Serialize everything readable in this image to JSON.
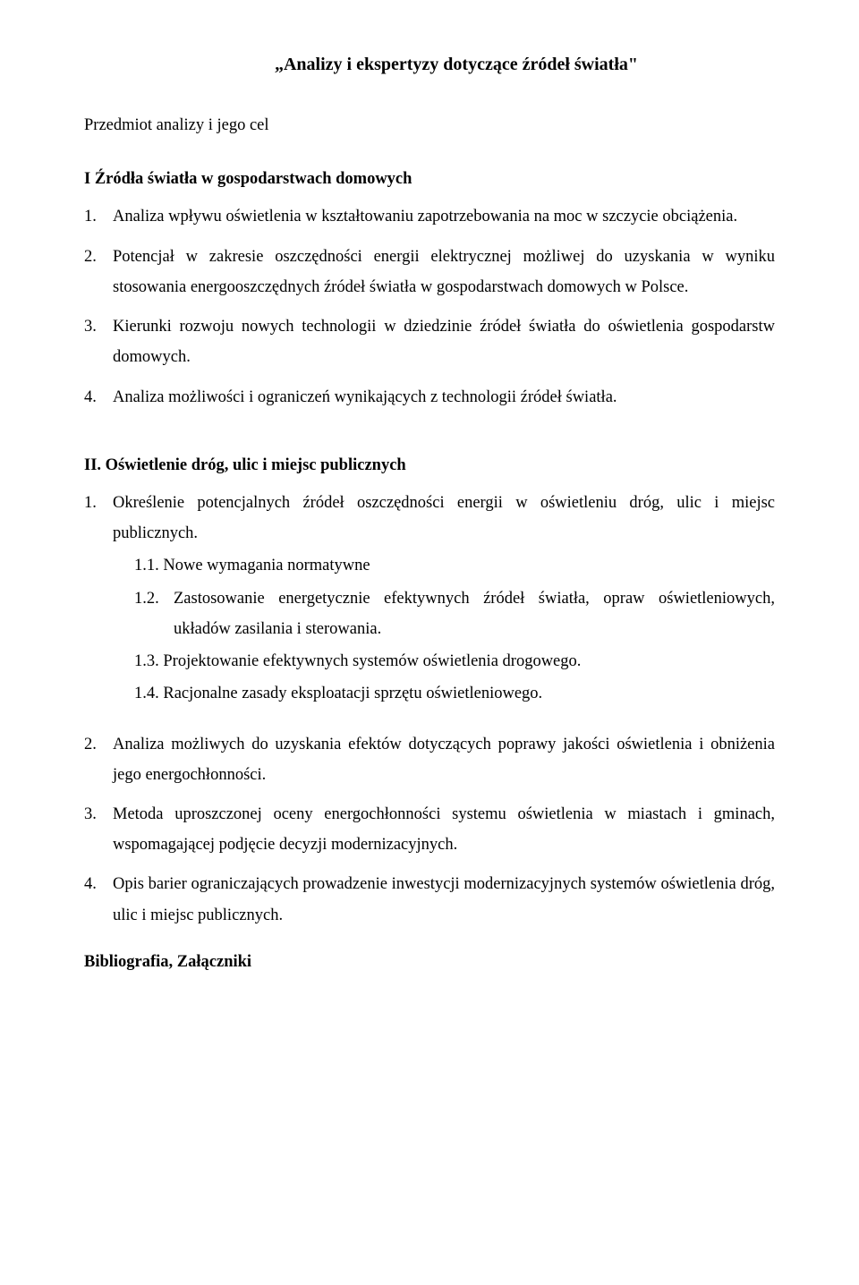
{
  "colors": {
    "bg": "#ffffff",
    "text": "#000000"
  },
  "typography": {
    "family": "Times New Roman",
    "base_size_pt": 14,
    "heading_weight": "bold"
  },
  "title": "„Analizy i ekspertyzy dotyczące źródeł światła\"",
  "subject": "Przedmiot analizy i jego cel",
  "section1": {
    "heading": "I Źródła światła w gospodarstwach domowych",
    "items": [
      {
        "n": "1.",
        "t": "Analiza wpływu oświetlenia w kształtowaniu zapotrzebowania na moc w szczycie obciążenia."
      },
      {
        "n": "2.",
        "t": "Potencjał w zakresie oszczędności energii elektrycznej możliwej do uzyskania w wyniku stosowania energooszczędnych źródeł światła w gospodarstwach domowych w Polsce."
      },
      {
        "n": "3.",
        "t": "Kierunki rozwoju nowych technologii w dziedzinie źródeł światła do oświetlenia gospodarstw domowych."
      },
      {
        "n": "4.",
        "t": "Analiza możliwości i ograniczeń wynikających z technologii źródeł światła."
      }
    ]
  },
  "section2": {
    "heading": "II. Oświetlenie dróg, ulic i miejsc publicznych",
    "item1": {
      "n": "1.",
      "t": "Określenie potencjalnych źródeł oszczędności energii w oświetleniu dróg, ulic i miejsc publicznych."
    },
    "sub": [
      {
        "n": "1.1.",
        "t": "Nowe wymagania normatywne"
      },
      {
        "n": "1.2.",
        "t": "Zastosowanie energetycznie efektywnych źródeł światła, opraw oświetleniowych, układów zasilania i sterowania."
      },
      {
        "n": "1.3.",
        "t": "Projektowanie efektywnych systemów oświetlenia drogowego."
      },
      {
        "n": "1.4.",
        "t": "Racjonalne zasady eksploatacji sprzętu oświetleniowego."
      }
    ],
    "item2": {
      "n": "2.",
      "t": "Analiza możliwych do uzyskania efektów dotyczących poprawy jakości oświetlenia i obniżenia jego energochłonności."
    },
    "item3": {
      "n": "3.",
      "t": "Metoda uproszczonej oceny energochłonności systemu oświetlenia w miastach i gminach, wspomagającej podjęcie decyzji modernizacyjnych."
    },
    "item4": {
      "n": "4.",
      "t": "Opis barier ograniczających prowadzenie inwestycji modernizacyjnych systemów oświetlenia dróg, ulic i miejsc publicznych."
    }
  },
  "biblio": "Bibliografia, Załączniki"
}
